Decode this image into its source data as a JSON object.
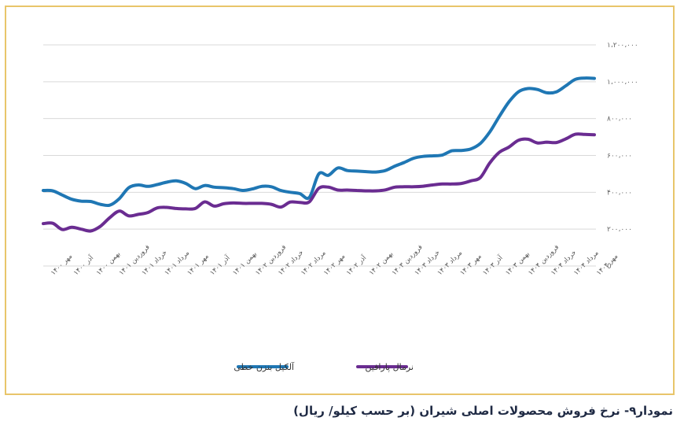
{
  "caption": "نمودار۹- نرخ فروش محصولات اصلی شیران (بر حسب کیلو/ ریال)",
  "colors": {
    "frame": "#e8c56a",
    "grid": "#d9d9d9",
    "caption": "#1f2a44"
  },
  "chart_data": {
    "type": "line",
    "title": "",
    "xlabel": "",
    "ylabel": "",
    "ylim": [
      0,
      1200000
    ],
    "yticks": [
      0,
      200000,
      400000,
      600000,
      800000,
      1000000,
      1200000
    ],
    "ytick_labels": [
      "0",
      "۲۰۰،۰۰۰",
      "۴۰۰،۰۰۰",
      "۶۰۰،۰۰۰",
      "۸۰۰،۰۰۰",
      "۱،۰۰۰،۰۰۰",
      "۱،۲۰۰،۰۰۰"
    ],
    "grid": true,
    "legend_position": "bottom-center",
    "x_labels": [
      "مهر ۱۴۰۰",
      "آذر ۱۴۰۰",
      "بهمن ۱۴۰۰",
      "فروردین ۱۴۰۱",
      "خرداد ۱۴۰۱",
      "مرداد ۱۴۰۱",
      "مهر ۱۴۰۱",
      "آذر ۱۴۰۱",
      "بهمن ۱۴۰۱",
      "فروردین ۱۴۰۲",
      "خرداد ۱۴۰۲",
      "مرداد ۱۴۰۲",
      "مهر ۱۴۰۲",
      "آذر ۱۴۰۲",
      "بهمن ۱۴۰۲",
      "فروردین ۱۴۰۳",
      "خرداد ۱۴۰۳",
      "مرداد ۱۴۰۳",
      "مهر ۱۴۰۳",
      "آذر ۱۴۰۳",
      "بهمن ۱۴۰۳",
      "فروردین ۱۴۰۴",
      "خرداد ۱۴۰۴",
      "مرداد ۱۴۰۴",
      "مهر ۱۴۰۴"
    ],
    "series": [
      {
        "name": "آلکیل بنزن خطی",
        "color": "#1f77b4",
        "values": [
          410000,
          408000,
          385000,
          362000,
          352000,
          350000,
          335000,
          330000,
          365000,
          425000,
          440000,
          432000,
          442000,
          455000,
          462000,
          448000,
          420000,
          437000,
          428000,
          425000,
          420000,
          410000,
          418000,
          432000,
          430000,
          410000,
          400000,
          393000,
          372000,
          500000,
          492000,
          532000,
          518000,
          515000,
          512000,
          510000,
          518000,
          542000,
          562000,
          585000,
          595000,
          598000,
          602000,
          625000,
          627000,
          635000,
          665000,
          728000,
          812000,
          890000,
          945000,
          963000,
          958000,
          940000,
          945000,
          978000,
          1013000,
          1020000,
          1018000
        ]
      },
      {
        "name": "نرمال پارافین",
        "color": "#6a2c91",
        "values": [
          230000,
          232000,
          198000,
          210000,
          200000,
          190000,
          215000,
          262000,
          298000,
          272000,
          280000,
          290000,
          315000,
          318000,
          312000,
          310000,
          312000,
          348000,
          325000,
          338000,
          342000,
          340000,
          340000,
          340000,
          335000,
          320000,
          347000,
          345000,
          348000,
          422000,
          428000,
          412000,
          412000,
          410000,
          408000,
          408000,
          413000,
          428000,
          430000,
          430000,
          433000,
          440000,
          445000,
          445000,
          448000,
          462000,
          480000,
          560000,
          617000,
          645000,
          682000,
          688000,
          668000,
          672000,
          670000,
          690000,
          715000,
          714000,
          712000
        ]
      }
    ]
  }
}
